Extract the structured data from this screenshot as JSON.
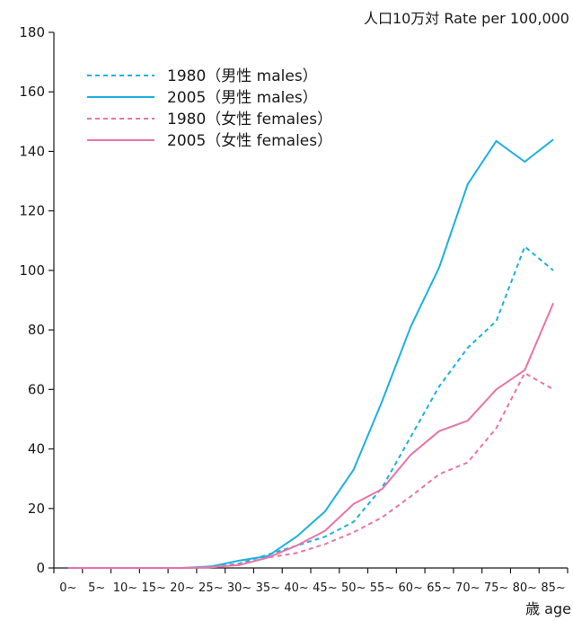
{
  "chart_data": {
    "type": "line",
    "ylabel": "人口10万対  Rate per 100,000",
    "xlabel": "歳 age",
    "categories": [
      "0~",
      "5~",
      "10~",
      "15~",
      "20~",
      "25~",
      "30~",
      "35~",
      "40~",
      "45~",
      "50~",
      "55~",
      "60~",
      "65~",
      "70~",
      "75~",
      "80~",
      "85~"
    ],
    "ylim": [
      0,
      180
    ],
    "yticks": [
      0,
      20,
      40,
      60,
      80,
      100,
      120,
      140,
      160,
      180
    ],
    "grid": false,
    "legend_position": "top-left",
    "series": [
      {
        "name": "1980（男性 males）",
        "style": "dashed",
        "color": "#1cb0e0",
        "values": [
          0,
          0,
          0,
          0,
          0,
          0.3,
          1.5,
          4.5,
          7.5,
          10.5,
          15.5,
          27,
          44,
          61,
          74,
          83,
          108,
          100
        ]
      },
      {
        "name": "2005（男性 males）",
        "style": "solid",
        "color": "#1cb0e0",
        "values": [
          0,
          0,
          0,
          0,
          0,
          0.5,
          2.5,
          4,
          10.5,
          19,
          33,
          56,
          81,
          101,
          129,
          143.5,
          136.5,
          144
        ]
      },
      {
        "name": "1980（女性 females）",
        "style": "dashed",
        "color": "#e874a6",
        "values": [
          0,
          0,
          0,
          0,
          0,
          0.2,
          1.2,
          3.5,
          5,
          8,
          12,
          17,
          24,
          31.5,
          35.5,
          47,
          65.5,
          60
        ]
      },
      {
        "name": "2005（女性 females）",
        "style": "solid",
        "color": "#e874a6",
        "values": [
          0,
          0,
          0,
          0,
          0,
          0.2,
          1,
          3.5,
          7.5,
          12.5,
          21.5,
          26.5,
          38,
          46,
          49.5,
          60,
          66.5,
          89
        ]
      }
    ]
  }
}
